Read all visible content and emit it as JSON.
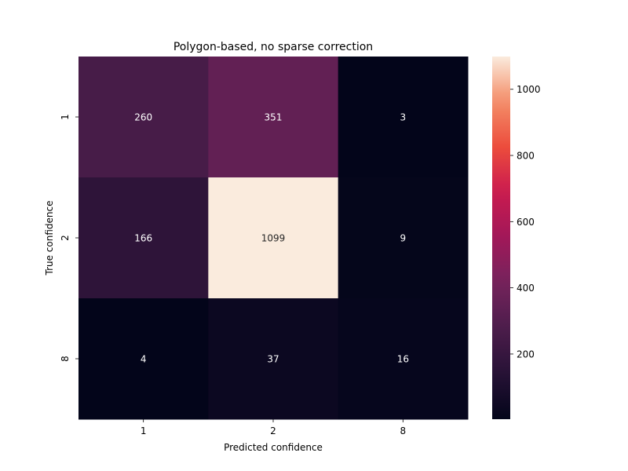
{
  "chart_data": {
    "type": "heatmap",
    "title": "Polygon-based, no sparse correction",
    "xlabel": "Predicted confidence",
    "ylabel": "True confidence",
    "x_categories": [
      "1",
      "2",
      "8"
    ],
    "y_categories": [
      "1",
      "2",
      "8"
    ],
    "values": [
      [
        260,
        351,
        3
      ],
      [
        166,
        1099,
        9
      ],
      [
        4,
        37,
        16
      ]
    ],
    "colormap": "rocket",
    "color_range": [
      3,
      1099
    ],
    "colorbar_ticks": [
      200,
      400,
      600,
      800,
      1000
    ],
    "colorbar_tick_labels": [
      "200",
      "400",
      "600",
      "800",
      "1000"
    ]
  }
}
